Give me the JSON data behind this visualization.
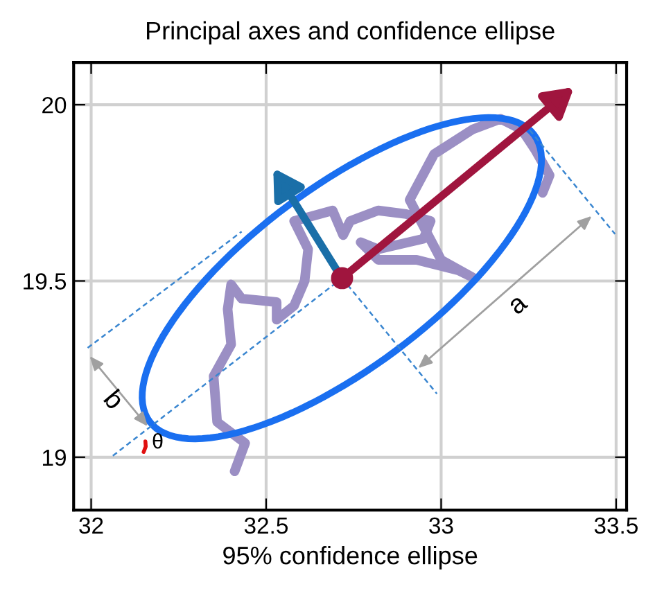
{
  "chart_data": {
    "type": "line",
    "title": "Principal axes and confidence ellipse",
    "xlabel": "95% confidence ellipse",
    "xlim": [
      31.95,
      33.53
    ],
    "ylim": [
      18.85,
      20.12
    ],
    "xticks": [
      32,
      32.5,
      33,
      33.5
    ],
    "yticks": [
      19,
      19.5,
      20
    ],
    "grid": true,
    "series": [
      {
        "color": "#9b8fc4",
        "x": [
          32.41,
          32.44,
          32.36,
          32.35,
          32.4,
          32.39,
          32.4,
          32.43,
          32.53,
          32.53,
          32.58,
          32.61,
          32.62,
          32.58,
          32.69,
          32.72,
          32.74,
          32.82,
          32.9,
          32.97,
          32.95,
          32.82,
          32.77,
          32.82,
          32.93,
          33.05,
          33.09,
          33.0,
          32.91,
          32.98,
          33.09,
          33.17,
          33.23,
          33.27,
          33.31,
          33.29
        ],
        "values": [
          18.96,
          19.04,
          19.1,
          19.23,
          19.32,
          19.42,
          19.49,
          19.45,
          19.44,
          19.39,
          19.43,
          19.5,
          19.59,
          19.67,
          19.7,
          19.63,
          19.67,
          19.7,
          19.69,
          19.67,
          19.62,
          19.59,
          19.61,
          19.56,
          19.56,
          19.53,
          19.51,
          19.56,
          19.73,
          19.86,
          19.93,
          19.96,
          19.93,
          19.87,
          19.8,
          19.75
        ],
        "line_style": "solid"
      },
      {
        "color": "#3a86d0",
        "x": [
          32.062,
          32.717
        ],
        "values": [
          19.004,
          19.508
        ],
        "line_style": "dashed"
      },
      {
        "color": "#3a86d0",
        "x": [
          31.99,
          32.43
        ],
        "values": [
          19.31,
          19.64
        ],
        "line_style": "dashed"
      },
      {
        "color": "#3a86d0",
        "x": [
          32.717,
          32.988
        ],
        "values": [
          19.508,
          19.18
        ],
        "line_style": "dashed"
      },
      {
        "color": "#3a86d0",
        "x": [
          33.253,
          33.497
        ],
        "values": [
          19.928,
          19.633
        ],
        "line_style": "dashed"
      },
      {
        "color": "#e01010",
        "x": [
          32.15,
          32.156,
          32.155
        ],
        "values": [
          19.015,
          19.03,
          19.045
        ],
        "line_style": "solid"
      },
      {
        "type": "scatter",
        "color": "#a0153e",
        "x": [
          32.717
        ],
        "values": [
          19.508
        ],
        "marker": "circle"
      }
    ],
    "annotations": [
      "a",
      "b",
      "θ"
    ]
  }
}
